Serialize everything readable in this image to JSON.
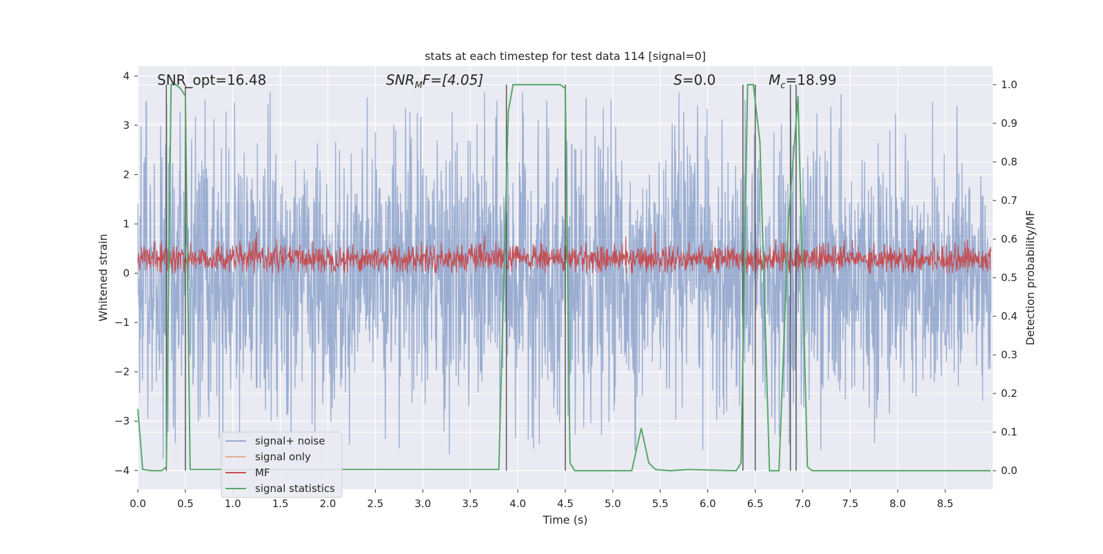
{
  "chart_data": {
    "type": "line",
    "title": "stats at each timestep for test data 114 [signal=0]",
    "xlabel": "Time (s)",
    "ylabel_left": "Whitened strain",
    "ylabel_right": "Detection probability/MF",
    "xlim": [
      0.0,
      9.0
    ],
    "ylim_left": [
      -4.38,
      4.2
    ],
    "ylim_right": [
      -0.048,
      1.048
    ],
    "x_ticks": [
      "0.0",
      "0.5",
      "1.0",
      "1.5",
      "2.0",
      "2.5",
      "3.0",
      "3.5",
      "4.0",
      "4.5",
      "5.0",
      "5.5",
      "6.0",
      "6.5",
      "7.0",
      "7.5",
      "8.0",
      "8.5"
    ],
    "y_left_ticks": [
      "4",
      "3",
      "2",
      "1",
      "0",
      "−1",
      "−2",
      "−3",
      "−4"
    ],
    "y_right_ticks": [
      "1.0",
      "0.9",
      "0.8",
      "0.7",
      "0.6",
      "0.5",
      "0.4",
      "0.3",
      "0.2",
      "0.1",
      "0.0"
    ],
    "grid": true,
    "legend_position": "lower-left",
    "annotations": {
      "snr_opt": "SNR_opt=16.48",
      "snr_mf_main": "SNR",
      "snr_mf_sub": "M",
      "snr_mf_rest": "F=[4.05]",
      "s_main": "S",
      "s_rest": "=0.0",
      "mc_main": "M",
      "mc_sub": "c",
      "mc_rest": "=18.99"
    },
    "colors": {
      "noise": "#4c72b0",
      "signal_only": "#dd8452",
      "mf": "#c44e52",
      "stats": "#55a868",
      "vlines": "#555555",
      "background": "#eaeaf2",
      "grid": "#ffffff"
    },
    "series": [
      {
        "name": "signal+ noise",
        "axis": "left",
        "description": "noisy whitened strain, roughly symmetric about 0 with amplitude ~2-4",
        "envelope_max": 3.75,
        "envelope_min": -4.0
      },
      {
        "name": "signal only",
        "axis": "left",
        "description": "zero signal"
      },
      {
        "name": "MF",
        "axis": "left",
        "baseline": 0.3,
        "amplitude_range": [
          0.0,
          0.9
        ]
      },
      {
        "name": "signal statistics",
        "axis": "right",
        "x": [
          0.0,
          0.05,
          0.15,
          0.25,
          0.3,
          0.35,
          0.4,
          0.45,
          0.5,
          0.55,
          3.8,
          3.9,
          3.95,
          4.45,
          4.5,
          4.55,
          4.6,
          5.2,
          5.3,
          5.38,
          5.45,
          5.6,
          5.8,
          6.3,
          6.35,
          6.42,
          6.48,
          6.55,
          6.65,
          6.75,
          6.85,
          6.95,
          7.05,
          7.1,
          8.98
        ],
        "y": [
          0.16,
          0.003,
          0.0,
          0.0,
          0.01,
          1.0,
          1.0,
          0.99,
          0.97,
          0.003,
          0.003,
          0.93,
          1.0,
          1.0,
          0.99,
          0.02,
          0.0,
          0.0,
          0.11,
          0.02,
          0.003,
          0.0,
          0.003,
          0.0,
          0.02,
          1.0,
          1.0,
          0.85,
          0.0,
          0.0,
          0.65,
          0.97,
          0.01,
          0.0,
          0.0
        ]
      }
    ],
    "vertical_lines_x": [
      0.3,
      0.5,
      3.88,
      4.5,
      6.37,
      6.5,
      6.87,
      6.93
    ]
  }
}
